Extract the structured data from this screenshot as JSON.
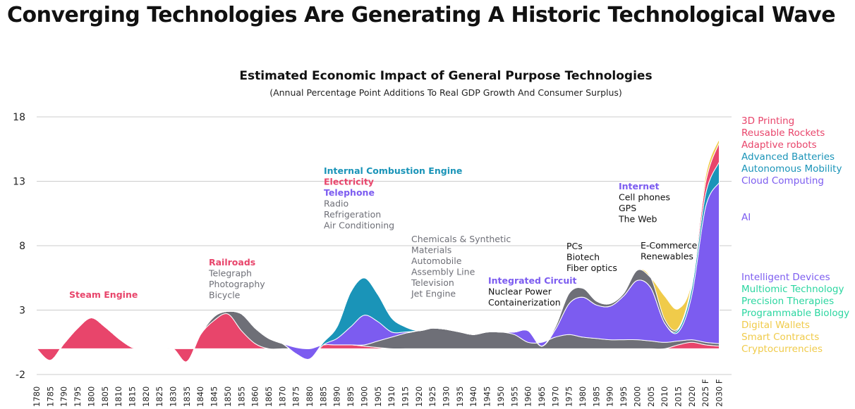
{
  "title": "Converging Technologies Are Generating A Historic Technological Wave",
  "colors": {
    "red": "#e8456b",
    "gray": "#6e6f77",
    "blue": "#1a94b8",
    "purple": "#7c5cf0",
    "green": "#2bd6a0",
    "yellow": "#f0cb4a",
    "grid": "#cccccc"
  },
  "chart_data": {
    "type": "area",
    "title": "Estimated Economic Impact of General Purpose Technologies",
    "subtitle": "(Annual Percentage Point Additions To Real GDP Growth And Consumer Surplus)",
    "ylim": [
      -2,
      18
    ],
    "y_ticks": [
      18,
      13,
      8,
      3,
      -2
    ],
    "grid": "horizontal",
    "x_categories": [
      "1780",
      "1785",
      "1790",
      "1795",
      "1800",
      "1805",
      "1810",
      "1815",
      "1820",
      "1825",
      "1830",
      "1835",
      "1840",
      "1845",
      "1850",
      "1855",
      "1860",
      "1865",
      "1870",
      "1875",
      "1880",
      "1885",
      "1890",
      "1895",
      "1900",
      "1905",
      "1910",
      "1915",
      "1920",
      "1925",
      "1930",
      "1935",
      "1940",
      "1945",
      "1950",
      "1955",
      "1960",
      "1965",
      "1970",
      "1975",
      "1980",
      "1985",
      "1990",
      "1995",
      "2000",
      "2005",
      "2010",
      "2015",
      "2020",
      "2025 F",
      "2030 F"
    ],
    "layers": [
      {
        "color": "red",
        "values": [
          0,
          -0.9,
          0.4,
          1.6,
          2.4,
          1.7,
          0.8,
          0.1,
          0,
          0,
          0,
          -1,
          1.1,
          2.2,
          2.7,
          1.4,
          0.4,
          0,
          0,
          0,
          0,
          0.3,
          0.3,
          0.3,
          0.2,
          0.1,
          0,
          0,
          0,
          0,
          0,
          0,
          0,
          0,
          0,
          0,
          0,
          0,
          0,
          0,
          0,
          0,
          0,
          0,
          0,
          0,
          0,
          0.3,
          0.5,
          0.3,
          0.2
        ]
      },
      {
        "color": "gray",
        "values": [
          0,
          0,
          0,
          0,
          0,
          0,
          0,
          0,
          0,
          0,
          0,
          0,
          0,
          0.3,
          0.2,
          1.3,
          1.2,
          0.8,
          0.4,
          0.1,
          0,
          0,
          0,
          0,
          0.1,
          0.5,
          0.9,
          1.2,
          1.4,
          1.6,
          1.5,
          1.3,
          1.1,
          1.3,
          1.3,
          1.1,
          0.5,
          0.5,
          0.9,
          1.1,
          0.9,
          0.8,
          0.7,
          0.7,
          0.7,
          0.6,
          0.5,
          0.3,
          0.2,
          0.2,
          0.2
        ]
      },
      {
        "color": "purple",
        "values": [
          0,
          0,
          0,
          0,
          0,
          0,
          0,
          0,
          0,
          0,
          0,
          0,
          0,
          0,
          0,
          0,
          0,
          0,
          0,
          -0.5,
          -0.8,
          0,
          0.5,
          1.4,
          2.3,
          1.5,
          0.4,
          0.1,
          0,
          0,
          0,
          0,
          0,
          0,
          0,
          0.2,
          0.9,
          -0.3,
          0.6,
          2.4,
          3.1,
          2.6,
          2.6,
          3.4,
          4.6,
          4.1,
          1.5,
          0.7,
          3.5,
          10.5,
          12.5
        ]
      },
      {
        "color": "blue",
        "values": [
          0,
          0,
          0,
          0,
          0,
          0,
          0,
          0,
          0,
          0,
          0,
          0,
          0,
          0,
          0,
          0,
          0,
          0,
          0,
          0,
          0,
          0.2,
          0.9,
          2.7,
          2.9,
          2.1,
          1.1,
          0.4,
          0,
          0,
          0,
          0,
          0,
          0,
          0,
          0,
          0,
          0,
          0,
          0,
          0,
          0,
          0,
          0,
          0,
          0,
          0,
          0.2,
          0.6,
          1,
          1.6
        ]
      },
      {
        "color": "red",
        "values": [
          0,
          0,
          0,
          0,
          0,
          0,
          0,
          0,
          0,
          0,
          0,
          0,
          0,
          0,
          0,
          0,
          0,
          0,
          0,
          0,
          0,
          0,
          0,
          0,
          0,
          0,
          0,
          0,
          0,
          0,
          0,
          0,
          0,
          0,
          0,
          0,
          0,
          0,
          0,
          0,
          0,
          0,
          0,
          0,
          0,
          0,
          0,
          0,
          0.3,
          0.9,
          1.5
        ]
      },
      {
        "color": "gray",
        "values": [
          0,
          0,
          0,
          0,
          0,
          0,
          0,
          0,
          0,
          0,
          0,
          0,
          0,
          0,
          0,
          0,
          0,
          0,
          0,
          0,
          0,
          0,
          0,
          0,
          0,
          0,
          0,
          0,
          0,
          0,
          0,
          0,
          0,
          0,
          0,
          0,
          0,
          0,
          0.2,
          0.8,
          0.7,
          0.3,
          0.2,
          0.2,
          0.8,
          0.8,
          0.3,
          0.1,
          0,
          0,
          0
        ]
      },
      {
        "color": "yellow",
        "values": [
          0,
          0,
          0,
          0,
          0,
          0,
          0,
          0,
          0,
          0,
          0,
          0,
          0,
          0,
          0,
          0,
          0,
          0,
          0,
          0,
          0,
          0,
          0,
          0,
          0,
          0,
          0,
          0,
          0,
          0,
          0,
          0,
          0,
          0,
          0,
          0,
          0,
          0,
          0,
          0,
          0,
          0,
          0,
          0,
          0,
          0,
          1.8,
          1.5,
          0.2,
          0.5,
          0.3
        ]
      }
    ],
    "annotations": [
      {
        "era": "1800",
        "lines": [
          {
            "text": "Steam Engine",
            "color": "red",
            "bold": true
          }
        ]
      },
      {
        "era": "1845",
        "lines": [
          {
            "text": "Railroads",
            "color": "red",
            "bold": true
          },
          {
            "text": "Telegraph",
            "color": "gray",
            "bold": false
          },
          {
            "text": "Photography",
            "color": "gray",
            "bold": false
          },
          {
            "text": "Bicycle",
            "color": "gray",
            "bold": false
          }
        ]
      },
      {
        "era": "1890",
        "lines": [
          {
            "text": "Internal Combustion Engine",
            "color": "blue",
            "bold": true
          },
          {
            "text": "Electricity",
            "color": "red",
            "bold": true
          },
          {
            "text": "Telephone",
            "color": "purple",
            "bold": true
          },
          {
            "text": "Radio",
            "color": "gray",
            "bold": false
          },
          {
            "text": "Refrigeration",
            "color": "gray",
            "bold": false
          },
          {
            "text": "Air Conditioning",
            "color": "gray",
            "bold": false
          }
        ]
      },
      {
        "era": "1915",
        "lines": [
          {
            "text": "Chemicals & Synthetic",
            "color": "gray",
            "bold": false
          },
          {
            "text": "Materials",
            "color": "gray",
            "bold": false
          },
          {
            "text": "Automobile",
            "color": "gray",
            "bold": false
          },
          {
            "text": "Assembly Line",
            "color": "gray",
            "bold": false
          },
          {
            "text": "Television",
            "color": "gray",
            "bold": false
          },
          {
            "text": "Jet Engine",
            "color": "gray",
            "bold": false
          }
        ]
      },
      {
        "era": "1950",
        "lines": [
          {
            "text": "Integrated Circuit",
            "color": "purple",
            "bold": true
          },
          {
            "text": "Nuclear Power",
            "color": "black",
            "bold": false
          },
          {
            "text": "Containerization",
            "color": "black",
            "bold": false
          }
        ]
      },
      {
        "era": "1975",
        "lines": [
          {
            "text": "PCs",
            "color": "black",
            "bold": false
          },
          {
            "text": "Biotech",
            "color": "black",
            "bold": false
          },
          {
            "text": "Fiber optics",
            "color": "black",
            "bold": false
          }
        ]
      },
      {
        "era": "1990",
        "lines": [
          {
            "text": "Internet",
            "color": "purple",
            "bold": true
          },
          {
            "text": "Cell phones",
            "color": "black",
            "bold": false
          },
          {
            "text": "GPS",
            "color": "black",
            "bold": false
          },
          {
            "text": "The Web",
            "color": "black",
            "bold": false
          }
        ]
      },
      {
        "era": "2000",
        "lines": [
          {
            "text": "E-Commerce",
            "color": "black",
            "bold": false
          },
          {
            "text": "Renewables",
            "color": "black",
            "bold": false
          }
        ]
      }
    ],
    "legend_groups": [
      [
        {
          "text": "3D Printing",
          "color": "red"
        },
        {
          "text": "Reusable Rockets",
          "color": "red"
        },
        {
          "text": "Adaptive robots",
          "color": "red"
        },
        {
          "text": "Advanced Batteries",
          "color": "blue"
        },
        {
          "text": "Autonomous Mobility",
          "color": "blue"
        },
        {
          "text": "Cloud Computing",
          "color": "purple"
        }
      ],
      [
        {
          "text": "AI",
          "color": "purple"
        }
      ],
      [
        {
          "text": "Intelligent Devices",
          "color": "purple"
        },
        {
          "text": "Multiomic Technology",
          "color": "green"
        },
        {
          "text": "Precision Therapies",
          "color": "green"
        },
        {
          "text": "Programmable Biology",
          "color": "green"
        },
        {
          "text": "Digital Wallets",
          "color": "yellow"
        },
        {
          "text": "Smart Contracts",
          "color": "yellow"
        },
        {
          "text": "Cryptocurrencies",
          "color": "yellow"
        }
      ]
    ]
  }
}
